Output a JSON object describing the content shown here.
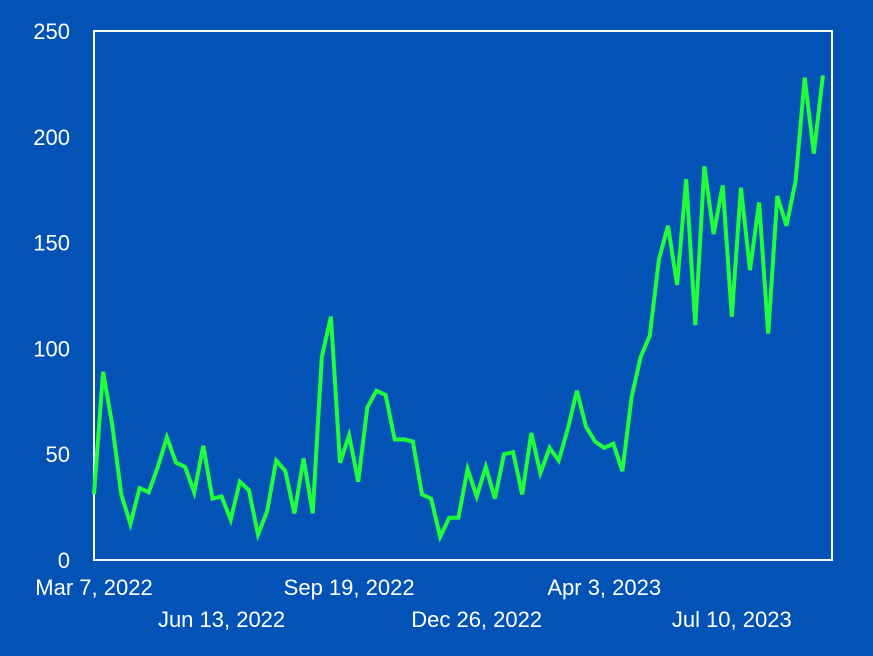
{
  "colors": {
    "background": "#0353b7",
    "plot_background": "#0353b7",
    "frame": "#ffffff",
    "line": "#1fff3a",
    "text": "#ffffff"
  },
  "chart_data": {
    "type": "line",
    "title": "",
    "xlabel": "",
    "ylabel": "",
    "x_start": "2022-03-07",
    "x_step_days": 7,
    "xlim": [
      "2022-03-07",
      "2023-09-25"
    ],
    "ylim": [
      0,
      250
    ],
    "y_ticks": [
      0,
      50,
      100,
      150,
      200,
      250
    ],
    "y_tick_labels": [
      "0",
      "50",
      "100",
      "150",
      "200",
      "250"
    ],
    "x_ticks": [
      "2022-03-07",
      "2022-06-13",
      "2022-09-19",
      "2022-12-26",
      "2023-04-03",
      "2023-07-10"
    ],
    "x_tick_labels": [
      "Mar 7, 2022",
      "Jun 13, 2022",
      "Sep 19, 2022",
      "Dec 26, 2022",
      "Apr 3, 2023",
      "Jul 10, 2023"
    ],
    "grid": false,
    "legend": "none",
    "series": [
      {
        "values": [
          31,
          89,
          64,
          31,
          17,
          34,
          32,
          44,
          58,
          46,
          44,
          32,
          54,
          29,
          30,
          19,
          37,
          33,
          12,
          23,
          47,
          42,
          22,
          48,
          22,
          96,
          115,
          46,
          59,
          37,
          72,
          80,
          78,
          57,
          57,
          56,
          31,
          29,
          11,
          20,
          20,
          43,
          30,
          44,
          29,
          50,
          51,
          31,
          60,
          41,
          53,
          47,
          62,
          80,
          63,
          56,
          53,
          55,
          42,
          77,
          96,
          106,
          142,
          158,
          130,
          180,
          111,
          186,
          154,
          177,
          115,
          176,
          137,
          169,
          107,
          172,
          158,
          179,
          228,
          192,
          229
        ]
      }
    ]
  }
}
